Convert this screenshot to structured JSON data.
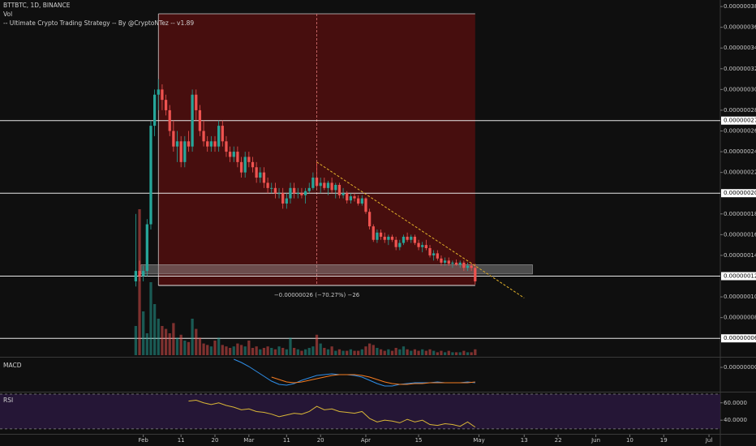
{
  "chart_data": {
    "type": "candlestick",
    "title": "BTTBTC, 1D, BINANCE",
    "volume_title": "Vol",
    "strategy_title": "-- Ultimate Crypto Trading Strategy -- By @CryptoNTez -- v1.89",
    "up_color": "#26a69a",
    "down_color": "#ef5350",
    "xlim": [
      -36,
      155
    ],
    "xticks": [
      {
        "value": 2,
        "label": "Feb"
      },
      {
        "value": 12,
        "label": "11"
      },
      {
        "value": 21,
        "label": "20"
      },
      {
        "value": 30,
        "label": "Mar"
      },
      {
        "value": 40,
        "label": "11"
      },
      {
        "value": 49,
        "label": "20"
      },
      {
        "value": 61,
        "label": "Apr"
      },
      {
        "value": 75,
        "label": "15"
      },
      {
        "value": 91,
        "label": "May"
      },
      {
        "value": 103,
        "label": "13"
      },
      {
        "value": 112,
        "label": "22"
      },
      {
        "value": 122,
        "label": "Jun"
      },
      {
        "value": 131,
        "label": "10"
      },
      {
        "value": 140,
        "label": "19"
      },
      {
        "value": 152,
        "label": "Jul"
      }
    ],
    "ylim": [
      4.22e-08,
      3.863e-07
    ],
    "yticks": [
      {
        "value": 3.8e-07,
        "label": "0.00000038"
      },
      {
        "value": 3.6e-07,
        "label": "0.00000036"
      },
      {
        "value": 3.4e-07,
        "label": "0.00000034"
      },
      {
        "value": 3.2e-07,
        "label": "0.00000032"
      },
      {
        "value": 3e-07,
        "label": "0.00000030"
      },
      {
        "value": 2.8e-07,
        "label": "0.00000028"
      },
      {
        "value": 2.6e-07,
        "label": "0.00000026"
      },
      {
        "value": 2.4e-07,
        "label": "0.00000024"
      },
      {
        "value": 2.2e-07,
        "label": "0.00000022"
      },
      {
        "value": 1.8e-07,
        "label": "0.00000018"
      },
      {
        "value": 1.6e-07,
        "label": "0.00000016"
      },
      {
        "value": 1.4e-07,
        "label": "0.00000014"
      },
      {
        "value": 1e-07,
        "label": "0.00000010"
      },
      {
        "value": 8e-08,
        "label": "0.00000008"
      }
    ],
    "levels": [
      {
        "value": 2.7e-07,
        "label": "0.00000027"
      },
      {
        "value": 2e-07,
        "label": "0.00000020"
      },
      {
        "value": 1.2e-07,
        "label": "0.00000012"
      },
      {
        "value": 6e-08,
        "label": "0.00000006"
      }
    ],
    "candles": [
      [
        1.15e-07,
        1.8e-07,
        1.1e-07,
        1.25e-07
      ],
      [
        1.25e-07,
        1.35e-07,
        1.15e-07,
        1.2e-07
      ],
      [
        1.2e-07,
        1.3e-07,
        1.15e-07,
        1.25e-07
      ],
      [
        1.25e-07,
        1.75e-07,
        1.2e-07,
        1.7e-07
      ],
      [
        1.7e-07,
        2.7e-07,
        1.65e-07,
        2.65e-07
      ],
      [
        2.65e-07,
        3e-07,
        2.55e-07,
        2.95e-07
      ],
      [
        2.95e-07,
        3.1e-07,
        2.8e-07,
        3e-07
      ],
      [
        3e-07,
        3.05e-07,
        2.8e-07,
        2.9e-07
      ],
      [
        2.9e-07,
        2.95e-07,
        2.75e-07,
        2.8e-07
      ],
      [
        2.8e-07,
        2.85e-07,
        2.55e-07,
        2.6e-07
      ],
      [
        2.6e-07,
        2.7e-07,
        2.4e-07,
        2.45e-07
      ],
      [
        2.45e-07,
        2.6e-07,
        2.3e-07,
        2.5e-07
      ],
      [
        2.5e-07,
        2.55e-07,
        2.25e-07,
        2.3e-07
      ],
      [
        2.3e-07,
        2.55e-07,
        2.25e-07,
        2.5e-07
      ],
      [
        2.5e-07,
        2.6e-07,
        2.4e-07,
        2.45e-07
      ],
      [
        2.45e-07,
        3e-07,
        2.4e-07,
        2.95e-07
      ],
      [
        2.95e-07,
        3e-07,
        2.7e-07,
        2.8e-07
      ],
      [
        2.8e-07,
        2.85e-07,
        2.55e-07,
        2.6e-07
      ],
      [
        2.6e-07,
        2.7e-07,
        2.45e-07,
        2.5e-07
      ],
      [
        2.5e-07,
        2.55e-07,
        2.4e-07,
        2.45e-07
      ],
      [
        2.45e-07,
        2.55e-07,
        2.4e-07,
        2.5e-07
      ],
      [
        2.5e-07,
        2.55e-07,
        2.4e-07,
        2.45e-07
      ],
      [
        2.45e-07,
        2.7e-07,
        2.4e-07,
        2.65e-07
      ],
      [
        2.65e-07,
        2.7e-07,
        2.45e-07,
        2.5e-07
      ],
      [
        2.5e-07,
        2.55e-07,
        2.35e-07,
        2.4e-07
      ],
      [
        2.4e-07,
        2.45e-07,
        2.3e-07,
        2.35e-07
      ],
      [
        2.35e-07,
        2.45e-07,
        2.3e-07,
        2.4e-07
      ],
      [
        2.4e-07,
        2.45e-07,
        2.25e-07,
        2.3e-07
      ],
      [
        2.3e-07,
        2.35e-07,
        2.15e-07,
        2.2e-07
      ],
      [
        2.2e-07,
        2.4e-07,
        2.15e-07,
        2.35e-07
      ],
      [
        2.35e-07,
        2.4e-07,
        2.25e-07,
        2.3e-07
      ],
      [
        2.3e-07,
        2.35e-07,
        2.2e-07,
        2.25e-07
      ],
      [
        2.25e-07,
        2.3e-07,
        2.1e-07,
        2.15e-07
      ],
      [
        2.15e-07,
        2.25e-07,
        2.1e-07,
        2.2e-07
      ],
      [
        2.2e-07,
        2.25e-07,
        2.05e-07,
        2.1e-07
      ],
      [
        2.1e-07,
        2.15e-07,
        2e-07,
        2.05e-07
      ],
      [
        2.05e-07,
        2.1e-07,
        2e-07,
        2.05e-07
      ],
      [
        2.05e-07,
        2.1e-07,
        1.95e-07,
        2e-07
      ],
      [
        2e-07,
        2.05e-07,
        1.95e-07,
        2e-07
      ],
      [
        2e-07,
        2.05e-07,
        1.85e-07,
        1.9e-07
      ],
      [
        1.9e-07,
        2e-07,
        1.85e-07,
        1.95e-07
      ],
      [
        1.95e-07,
        2.1e-07,
        1.9e-07,
        2.05e-07
      ],
      [
        2.05e-07,
        2.1e-07,
        1.95e-07,
        2e-07
      ],
      [
        2e-07,
        2.05e-07,
        1.95e-07,
        2e-07
      ],
      [
        2e-07,
        2.05e-07,
        1.95e-07,
        1.98e-07
      ],
      [
        1.98e-07,
        2.05e-07,
        1.9e-07,
        2.02e-07
      ],
      [
        2.02e-07,
        2.1e-07,
        2e-07,
        2.05e-07
      ],
      [
        2.05e-07,
        2.2e-07,
        2.03e-07,
        2.15e-07
      ],
      [
        2.15e-07,
        2.3e-07,
        2.05e-07,
        2.07e-07
      ],
      [
        2.07e-07,
        2.15e-07,
        2e-07,
        2.1e-07
      ],
      [
        2.1e-07,
        2.15e-07,
        2.03e-07,
        2.05e-07
      ],
      [
        2.05e-07,
        2.12e-07,
        1.98e-07,
        2.1e-07
      ],
      [
        2.1e-07,
        2.15e-07,
        2e-07,
        2.03e-07
      ],
      [
        2.03e-07,
        2.1e-07,
        1.95e-07,
        2.08e-07
      ],
      [
        2.08e-07,
        2.1e-07,
        1.95e-07,
        1.98e-07
      ],
      [
        1.98e-07,
        2.05e-07,
        1.95e-07,
        2e-07
      ],
      [
        2e-07,
        2.02e-07,
        1.9e-07,
        1.93e-07
      ],
      [
        1.93e-07,
        2e-07,
        1.9e-07,
        1.97e-07
      ],
      [
        1.97e-07,
        2e-07,
        1.92e-07,
        1.95e-07
      ],
      [
        1.95e-07,
        1.98e-07,
        1.88e-07,
        1.9e-07
      ],
      [
        1.9e-07,
        1.98e-07,
        1.88e-07,
        1.95e-07
      ],
      [
        1.95e-07,
        1.96e-07,
        1.8e-07,
        1.82e-07
      ],
      [
        1.82e-07,
        1.85e-07,
        1.65e-07,
        1.68e-07
      ],
      [
        1.68e-07,
        1.7e-07,
        1.53e-07,
        1.55e-07
      ],
      [
        1.55e-07,
        1.65e-07,
        1.52e-07,
        1.62e-07
      ],
      [
        1.62e-07,
        1.65e-07,
        1.55e-07,
        1.58e-07
      ],
      [
        1.58e-07,
        1.62e-07,
        1.52e-07,
        1.55e-07
      ],
      [
        1.55e-07,
        1.6e-07,
        1.5e-07,
        1.58e-07
      ],
      [
        1.58e-07,
        1.6e-07,
        1.53e-07,
        1.55e-07
      ],
      [
        1.55e-07,
        1.58e-07,
        1.45e-07,
        1.48e-07
      ],
      [
        1.48e-07,
        1.55e-07,
        1.45e-07,
        1.52e-07
      ],
      [
        1.52e-07,
        1.6e-07,
        1.5e-07,
        1.58e-07
      ],
      [
        1.58e-07,
        1.62e-07,
        1.53e-07,
        1.55e-07
      ],
      [
        1.55e-07,
        1.6e-07,
        1.52e-07,
        1.58e-07
      ],
      [
        1.58e-07,
        1.6e-07,
        1.5e-07,
        1.52e-07
      ],
      [
        1.52e-07,
        1.55e-07,
        1.45e-07,
        1.48e-07
      ],
      [
        1.48e-07,
        1.53e-07,
        1.43e-07,
        1.5e-07
      ],
      [
        1.5e-07,
        1.55e-07,
        1.45e-07,
        1.47e-07
      ],
      [
        1.47e-07,
        1.5e-07,
        1.38e-07,
        1.4e-07
      ],
      [
        1.4e-07,
        1.45e-07,
        1.35e-07,
        1.42e-07
      ],
      [
        1.42e-07,
        1.45e-07,
        1.35e-07,
        1.37e-07
      ],
      [
        1.37e-07,
        1.4e-07,
        1.3e-07,
        1.33e-07
      ],
      [
        1.33e-07,
        1.38e-07,
        1.3e-07,
        1.35e-07
      ],
      [
        1.35e-07,
        1.38e-07,
        1.3e-07,
        1.32e-07
      ],
      [
        1.32e-07,
        1.35e-07,
        1.28e-07,
        1.33e-07
      ],
      [
        1.33e-07,
        1.36e-07,
        1.3e-07,
        1.31e-07
      ],
      [
        1.31e-07,
        1.35e-07,
        1.28e-07,
        1.33e-07
      ],
      [
        1.33e-07,
        1.35e-07,
        1.25e-07,
        1.28e-07
      ],
      [
        1.28e-07,
        1.33e-07,
        1.25e-07,
        1.3e-07
      ],
      [
        1.3e-07,
        1.33e-07,
        1.25e-07,
        1.28e-07
      ],
      [
        1.28e-07,
        1.32e-07,
        1.12e-07,
        1.15e-07
      ]
    ],
    "volume": [
      20,
      100,
      30,
      15,
      50,
      35,
      25,
      20,
      18,
      15,
      22,
      12,
      14,
      10,
      9,
      25,
      18,
      12,
      8,
      7,
      6,
      10,
      12,
      7,
      6,
      5,
      6,
      8,
      7,
      6,
      10,
      5,
      6,
      4,
      5,
      6,
      5,
      4,
      6,
      5,
      4,
      12,
      5,
      4,
      3,
      4,
      5,
      6,
      14,
      8,
      5,
      4,
      6,
      3,
      4,
      3,
      3,
      4,
      3,
      3,
      4,
      6,
      8,
      7,
      5,
      4,
      3,
      4,
      3,
      5,
      4,
      6,
      4,
      3,
      4,
      3,
      4,
      3,
      4,
      3,
      2,
      3,
      2,
      3,
      2,
      2,
      2,
      3,
      2,
      2,
      4
    ],
    "range_box": {
      "x": [
        6,
        90
      ],
      "y": [
        1.11e-07,
        3.73e-07
      ],
      "color": "#8b0d0d",
      "label": "−0.00000026 (−70.27%) −26"
    },
    "range_marker_x": 48,
    "zone": {
      "x": [
        1.4,
        105.2
      ],
      "y": [
        1.22e-07,
        1.31e-07
      ],
      "color": "#9a9a9a"
    },
    "trendline": {
      "x": [
        48,
        103
      ],
      "y": [
        2.3e-07,
        9.9e-08
      ],
      "color": "#e0b02a"
    },
    "macd": {
      "title": "MACD",
      "ylim": [
        -2.9e-08,
        1.1e-08
      ],
      "yticks": [
        {
          "value": 0,
          "label": "0.00000000"
        }
      ],
      "x": [
        26,
        28,
        30,
        32,
        34,
        36,
        38,
        40,
        42,
        44,
        46,
        48,
        50,
        52,
        54,
        56,
        58,
        60,
        62,
        64,
        66,
        68,
        70,
        72,
        74,
        76,
        78,
        80,
        82,
        84,
        86,
        88,
        90
      ],
      "series": [
        {
          "color": "#2f8ee8",
          "values": [
            1e-08,
            6e-09,
            1e-09,
            -5e-09,
            -1.1e-08,
            -1.7e-08,
            -2.1e-08,
            -2.2e-08,
            -2e-08,
            -1.6e-08,
            -1.3e-08,
            -1e-08,
            -9e-09,
            -8e-09,
            -9e-09,
            -9e-09,
            -1e-08,
            -1.2e-08,
            -1.6e-08,
            -2e-08,
            -2.3e-08,
            -2.3e-08,
            -2.1e-08,
            -2e-08,
            -1.9e-08,
            -1.9e-08,
            -1.9e-08,
            -1.8e-08,
            -1.9e-08,
            -1.9e-08,
            -1.9e-08,
            -1.8e-08,
            -1.9e-08
          ]
        },
        {
          "color": "#f57c22",
          "values": [
            null,
            null,
            null,
            null,
            null,
            -1.2e-08,
            -1.5e-08,
            -1.8e-08,
            -1.9e-08,
            -1.8e-08,
            -1.6e-08,
            -1.4e-08,
            -1.2e-08,
            -1e-08,
            -9e-09,
            -9e-09,
            -9e-09,
            -1e-08,
            -1.2e-08,
            -1.5e-08,
            -1.8e-08,
            -2e-08,
            -2.1e-08,
            -2.1e-08,
            -2e-08,
            -2e-08,
            -1.9e-08,
            -1.9e-08,
            -1.9e-08,
            -1.9e-08,
            -1.9e-08,
            -1.9e-08,
            -1.8e-08
          ]
        }
      ]
    },
    "rsi": {
      "title": "RSI",
      "ylim": [
        24.3,
        71.9
      ],
      "yticks": [
        {
          "value": 60,
          "label": "60.0000"
        },
        {
          "value": 40,
          "label": "40.0000"
        }
      ],
      "band": [
        70,
        30
      ],
      "color": "#d9b637",
      "x": [
        14,
        16,
        18,
        20,
        22,
        24,
        26,
        28,
        30,
        32,
        34,
        36,
        38,
        40,
        42,
        44,
        46,
        48,
        50,
        52,
        54,
        56,
        58,
        60,
        62,
        64,
        66,
        68,
        70,
        72,
        74,
        76,
        78,
        80,
        82,
        84,
        86,
        88,
        90
      ],
      "values": [
        62,
        63,
        60,
        58,
        60,
        57,
        55,
        52,
        53,
        50,
        49,
        47,
        44,
        46,
        48,
        47,
        50,
        56,
        52,
        53,
        50,
        49,
        48,
        50,
        42,
        38,
        40,
        39,
        37,
        41,
        38,
        40,
        35,
        34,
        36,
        35,
        33,
        38,
        32
      ]
    }
  }
}
